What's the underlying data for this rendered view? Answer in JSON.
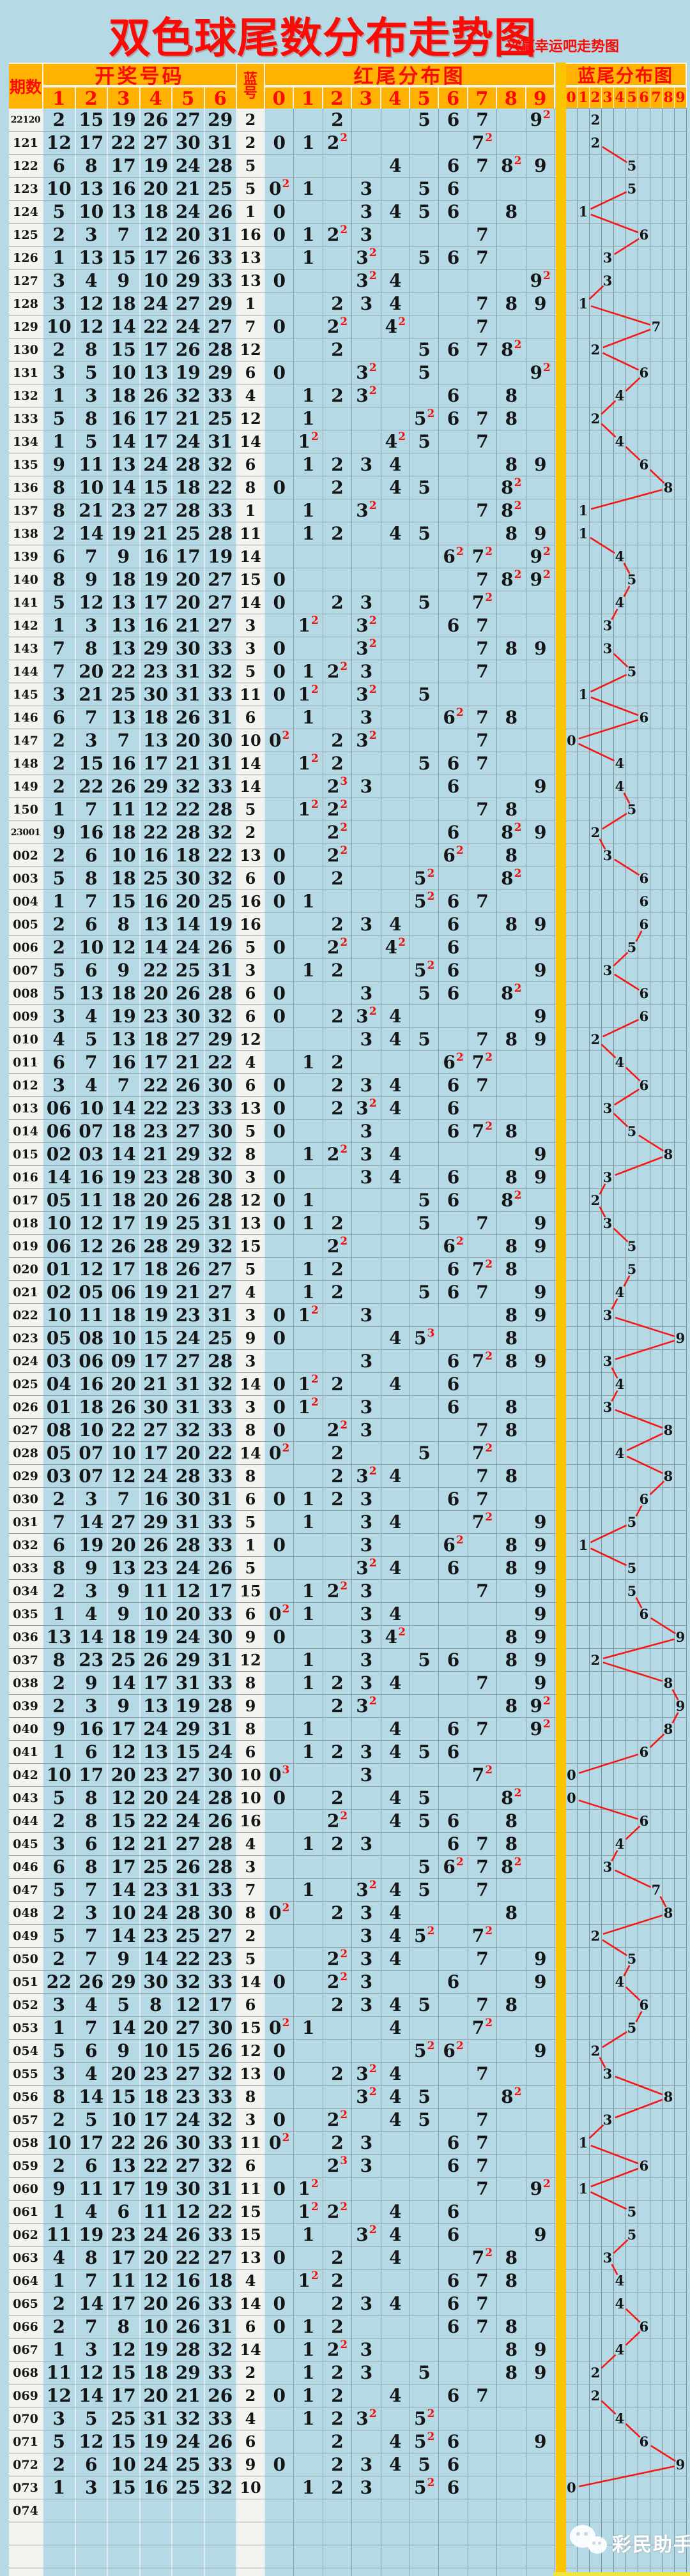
{
  "title": "双色球尾数分布走势图",
  "subtitle": "兴赢幸运吧走势图",
  "watermark": "彩民助手",
  "colors": {
    "page_bg": "#b5dae6",
    "header_orange": "#ffb201",
    "gold_bar": "#fdc401",
    "accent_red": "#fb0b06",
    "digit_black": "#151515",
    "light_cell": "#f3f3ef",
    "trend_line": "#f51616"
  },
  "header": {
    "period": "期数",
    "red_group": "开奖号码",
    "red_positions": [
      "1",
      "2",
      "3",
      "4",
      "5",
      "6"
    ],
    "blue_label": "蓝号",
    "red_tail_group": "红尾分布图",
    "red_tail_digits": [
      "0",
      "1",
      "2",
      "3",
      "4",
      "5",
      "6",
      "7",
      "8",
      "9"
    ],
    "blue_tail_group": "蓝尾分布图",
    "blue_tail_digits": [
      "0",
      "1",
      "2",
      "3",
      "4",
      "5",
      "6",
      "7",
      "8",
      "9"
    ]
  },
  "chart_data": {
    "type": "table",
    "title": "双色球尾数分布走势图",
    "columns": [
      "期数",
      "红1",
      "红2",
      "红3",
      "红4",
      "红5",
      "红6",
      "蓝号"
    ],
    "note_red_tail": "红尾分布图: digit d shown in column d with red superscript count when count>1, derived from the 6 red numbers' last digits",
    "note_blue_tail": "蓝尾分布图: blue number's last digit plotted in columns 0-9, consecutive differing values joined by red line",
    "rows": [
      [
        "22120",
        [
          "2",
          "15",
          "19",
          "26",
          "27",
          "29"
        ],
        "2"
      ],
      [
        "121",
        [
          "12",
          "17",
          "22",
          "27",
          "30",
          "31"
        ],
        "2"
      ],
      [
        "122",
        [
          "6",
          "8",
          "17",
          "19",
          "24",
          "28"
        ],
        "5"
      ],
      [
        "123",
        [
          "10",
          "13",
          "16",
          "20",
          "21",
          "25"
        ],
        "5"
      ],
      [
        "124",
        [
          "5",
          "10",
          "13",
          "18",
          "24",
          "26"
        ],
        "1"
      ],
      [
        "125",
        [
          "2",
          "3",
          "7",
          "12",
          "20",
          "31"
        ],
        "16"
      ],
      [
        "126",
        [
          "1",
          "13",
          "15",
          "17",
          "26",
          "33"
        ],
        "13"
      ],
      [
        "127",
        [
          "3",
          "4",
          "9",
          "10",
          "29",
          "33"
        ],
        "13"
      ],
      [
        "128",
        [
          "3",
          "12",
          "18",
          "24",
          "27",
          "29"
        ],
        "1"
      ],
      [
        "129",
        [
          "10",
          "12",
          "14",
          "22",
          "24",
          "27"
        ],
        "7"
      ],
      [
        "130",
        [
          "2",
          "8",
          "15",
          "17",
          "26",
          "28"
        ],
        "12"
      ],
      [
        "131",
        [
          "3",
          "5",
          "10",
          "13",
          "19",
          "29"
        ],
        "6"
      ],
      [
        "132",
        [
          "1",
          "3",
          "18",
          "26",
          "32",
          "33"
        ],
        "4"
      ],
      [
        "133",
        [
          "5",
          "8",
          "16",
          "17",
          "21",
          "25"
        ],
        "12"
      ],
      [
        "134",
        [
          "1",
          "5",
          "14",
          "17",
          "24",
          "31"
        ],
        "14"
      ],
      [
        "135",
        [
          "9",
          "11",
          "13",
          "24",
          "28",
          "32"
        ],
        "6"
      ],
      [
        "136",
        [
          "8",
          "10",
          "14",
          "15",
          "18",
          "22"
        ],
        "8"
      ],
      [
        "137",
        [
          "8",
          "21",
          "23",
          "27",
          "28",
          "33"
        ],
        "1"
      ],
      [
        "138",
        [
          "2",
          "14",
          "19",
          "21",
          "25",
          "28"
        ],
        "11"
      ],
      [
        "139",
        [
          "6",
          "7",
          "9",
          "16",
          "17",
          "19"
        ],
        "14"
      ],
      [
        "140",
        [
          "8",
          "9",
          "18",
          "19",
          "20",
          "27"
        ],
        "15"
      ],
      [
        "141",
        [
          "5",
          "12",
          "13",
          "17",
          "20",
          "27"
        ],
        "14"
      ],
      [
        "142",
        [
          "1",
          "3",
          "13",
          "16",
          "21",
          "27"
        ],
        "3"
      ],
      [
        "143",
        [
          "7",
          "8",
          "13",
          "29",
          "30",
          "33"
        ],
        "3"
      ],
      [
        "144",
        [
          "7",
          "20",
          "22",
          "23",
          "31",
          "32"
        ],
        "5"
      ],
      [
        "145",
        [
          "3",
          "21",
          "25",
          "30",
          "31",
          "33"
        ],
        "11"
      ],
      [
        "146",
        [
          "6",
          "7",
          "13",
          "18",
          "26",
          "31"
        ],
        "6"
      ],
      [
        "147",
        [
          "2",
          "3",
          "7",
          "13",
          "20",
          "30"
        ],
        "10"
      ],
      [
        "148",
        [
          "2",
          "15",
          "16",
          "17",
          "21",
          "31"
        ],
        "14"
      ],
      [
        "149",
        [
          "2",
          "22",
          "26",
          "29",
          "32",
          "33"
        ],
        "14"
      ],
      [
        "150",
        [
          "1",
          "7",
          "11",
          "12",
          "22",
          "28"
        ],
        "5"
      ],
      [
        "23001",
        [
          "9",
          "16",
          "18",
          "22",
          "28",
          "32"
        ],
        "2"
      ],
      [
        "002",
        [
          "2",
          "6",
          "10",
          "16",
          "18",
          "22"
        ],
        "13"
      ],
      [
        "003",
        [
          "5",
          "8",
          "18",
          "25",
          "30",
          "32"
        ],
        "6"
      ],
      [
        "004",
        [
          "1",
          "7",
          "15",
          "16",
          "20",
          "25"
        ],
        "16"
      ],
      [
        "005",
        [
          "2",
          "6",
          "8",
          "13",
          "14",
          "19"
        ],
        "16"
      ],
      [
        "006",
        [
          "2",
          "10",
          "12",
          "14",
          "24",
          "26"
        ],
        "5"
      ],
      [
        "007",
        [
          "5",
          "6",
          "9",
          "22",
          "25",
          "31"
        ],
        "3"
      ],
      [
        "008",
        [
          "5",
          "13",
          "18",
          "20",
          "26",
          "28"
        ],
        "6"
      ],
      [
        "009",
        [
          "3",
          "4",
          "19",
          "23",
          "30",
          "32"
        ],
        "6"
      ],
      [
        "010",
        [
          "4",
          "5",
          "13",
          "18",
          "27",
          "29"
        ],
        "12"
      ],
      [
        "011",
        [
          "6",
          "7",
          "16",
          "17",
          "21",
          "22"
        ],
        "4"
      ],
      [
        "012",
        [
          "3",
          "4",
          "7",
          "22",
          "26",
          "30"
        ],
        "6"
      ],
      [
        "013",
        [
          "06",
          "10",
          "14",
          "22",
          "23",
          "33"
        ],
        "13"
      ],
      [
        "014",
        [
          "06",
          "07",
          "18",
          "23",
          "27",
          "30"
        ],
        "5"
      ],
      [
        "015",
        [
          "02",
          "03",
          "14",
          "21",
          "29",
          "32"
        ],
        "8"
      ],
      [
        "016",
        [
          "14",
          "16",
          "19",
          "23",
          "28",
          "30"
        ],
        "3"
      ],
      [
        "017",
        [
          "05",
          "11",
          "18",
          "20",
          "26",
          "28"
        ],
        "12"
      ],
      [
        "018",
        [
          "10",
          "12",
          "17",
          "19",
          "25",
          "31"
        ],
        "13"
      ],
      [
        "019",
        [
          "06",
          "12",
          "26",
          "28",
          "29",
          "32"
        ],
        "15"
      ],
      [
        "020",
        [
          "01",
          "12",
          "17",
          "18",
          "26",
          "27"
        ],
        "5"
      ],
      [
        "021",
        [
          "02",
          "05",
          "06",
          "19",
          "21",
          "27"
        ],
        "4"
      ],
      [
        "022",
        [
          "10",
          "11",
          "18",
          "19",
          "23",
          "31"
        ],
        "3"
      ],
      [
        "023",
        [
          "05",
          "08",
          "10",
          "15",
          "24",
          "25"
        ],
        "9"
      ],
      [
        "024",
        [
          "03",
          "06",
          "09",
          "17",
          "27",
          "28"
        ],
        "3"
      ],
      [
        "025",
        [
          "04",
          "16",
          "20",
          "21",
          "31",
          "32"
        ],
        "14"
      ],
      [
        "026",
        [
          "01",
          "18",
          "26",
          "30",
          "31",
          "33"
        ],
        "3"
      ],
      [
        "027",
        [
          "08",
          "10",
          "22",
          "27",
          "32",
          "33"
        ],
        "8"
      ],
      [
        "028",
        [
          "05",
          "07",
          "10",
          "17",
          "20",
          "22"
        ],
        "14"
      ],
      [
        "029",
        [
          "03",
          "07",
          "12",
          "24",
          "28",
          "33"
        ],
        "8"
      ],
      [
        "030",
        [
          "2",
          "3",
          "7",
          "16",
          "30",
          "31"
        ],
        "6"
      ],
      [
        "031",
        [
          "7",
          "14",
          "27",
          "29",
          "31",
          "33"
        ],
        "5"
      ],
      [
        "032",
        [
          "6",
          "19",
          "20",
          "26",
          "28",
          "33"
        ],
        "1"
      ],
      [
        "033",
        [
          "8",
          "9",
          "13",
          "23",
          "24",
          "26"
        ],
        "5"
      ],
      [
        "034",
        [
          "2",
          "3",
          "9",
          "11",
          "12",
          "17"
        ],
        "15"
      ],
      [
        "035",
        [
          "1",
          "4",
          "9",
          "10",
          "20",
          "33"
        ],
        "6"
      ],
      [
        "036",
        [
          "13",
          "14",
          "18",
          "19",
          "24",
          "30"
        ],
        "9"
      ],
      [
        "037",
        [
          "8",
          "23",
          "25",
          "26",
          "29",
          "31"
        ],
        "12"
      ],
      [
        "038",
        [
          "2",
          "9",
          "14",
          "17",
          "31",
          "33"
        ],
        "8"
      ],
      [
        "039",
        [
          "2",
          "3",
          "9",
          "13",
          "19",
          "28"
        ],
        "9"
      ],
      [
        "040",
        [
          "9",
          "16",
          "17",
          "24",
          "29",
          "31"
        ],
        "8"
      ],
      [
        "041",
        [
          "1",
          "6",
          "12",
          "13",
          "15",
          "24"
        ],
        "6"
      ],
      [
        "042",
        [
          "10",
          "17",
          "20",
          "23",
          "27",
          "30"
        ],
        "10"
      ],
      [
        "043",
        [
          "5",
          "8",
          "12",
          "20",
          "24",
          "28"
        ],
        "10"
      ],
      [
        "044",
        [
          "2",
          "8",
          "15",
          "22",
          "24",
          "26"
        ],
        "16"
      ],
      [
        "045",
        [
          "3",
          "6",
          "12",
          "21",
          "27",
          "28"
        ],
        "4"
      ],
      [
        "046",
        [
          "6",
          "8",
          "17",
          "25",
          "26",
          "28"
        ],
        "3"
      ],
      [
        "047",
        [
          "5",
          "7",
          "14",
          "23",
          "31",
          "33"
        ],
        "7"
      ],
      [
        "048",
        [
          "2",
          "3",
          "10",
          "24",
          "28",
          "30"
        ],
        "8"
      ],
      [
        "049",
        [
          "5",
          "7",
          "14",
          "23",
          "25",
          "27"
        ],
        "2"
      ],
      [
        "050",
        [
          "2",
          "7",
          "9",
          "14",
          "22",
          "23"
        ],
        "5"
      ],
      [
        "051",
        [
          "22",
          "26",
          "29",
          "30",
          "32",
          "33"
        ],
        "14"
      ],
      [
        "052",
        [
          "3",
          "4",
          "5",
          "8",
          "12",
          "17"
        ],
        "6"
      ],
      [
        "053",
        [
          "1",
          "7",
          "14",
          "20",
          "27",
          "30"
        ],
        "15"
      ],
      [
        "054",
        [
          "5",
          "6",
          "9",
          "10",
          "15",
          "26"
        ],
        "12"
      ],
      [
        "055",
        [
          "3",
          "4",
          "20",
          "23",
          "27",
          "32"
        ],
        "13"
      ],
      [
        "056",
        [
          "8",
          "14",
          "15",
          "18",
          "23",
          "33"
        ],
        "8"
      ],
      [
        "057",
        [
          "2",
          "5",
          "10",
          "17",
          "24",
          "32"
        ],
        "3"
      ],
      [
        "058",
        [
          "10",
          "17",
          "22",
          "26",
          "30",
          "33"
        ],
        "11"
      ],
      [
        "059",
        [
          "2",
          "6",
          "13",
          "22",
          "27",
          "32"
        ],
        "6"
      ],
      [
        "060",
        [
          "9",
          "11",
          "17",
          "19",
          "30",
          "31"
        ],
        "11"
      ],
      [
        "061",
        [
          "1",
          "4",
          "6",
          "11",
          "12",
          "22"
        ],
        "15"
      ],
      [
        "062",
        [
          "11",
          "19",
          "23",
          "24",
          "26",
          "33"
        ],
        "15"
      ],
      [
        "063",
        [
          "4",
          "8",
          "17",
          "20",
          "22",
          "27"
        ],
        "13"
      ],
      [
        "064",
        [
          "1",
          "7",
          "11",
          "12",
          "16",
          "18"
        ],
        "4"
      ],
      [
        "065",
        [
          "2",
          "14",
          "17",
          "20",
          "26",
          "33"
        ],
        "14"
      ],
      [
        "066",
        [
          "2",
          "7",
          "8",
          "10",
          "26",
          "31"
        ],
        "6"
      ],
      [
        "067",
        [
          "1",
          "3",
          "12",
          "19",
          "28",
          "32"
        ],
        "14"
      ],
      [
        "068",
        [
          "11",
          "12",
          "15",
          "18",
          "29",
          "33"
        ],
        "2"
      ],
      [
        "069",
        [
          "12",
          "14",
          "17",
          "20",
          "21",
          "26"
        ],
        "2"
      ],
      [
        "070",
        [
          "3",
          "5",
          "25",
          "31",
          "32",
          "33"
        ],
        "4"
      ],
      [
        "071",
        [
          "5",
          "12",
          "15",
          "19",
          "24",
          "26"
        ],
        "6"
      ],
      [
        "072",
        [
          "2",
          "6",
          "10",
          "24",
          "25",
          "33"
        ],
        "9"
      ],
      [
        "073",
        [
          "1",
          "3",
          "15",
          "16",
          "25",
          "32"
        ],
        "10"
      ],
      [
        "074",
        [],
        ""
      ]
    ],
    "trailing_empty_rows": 3
  }
}
